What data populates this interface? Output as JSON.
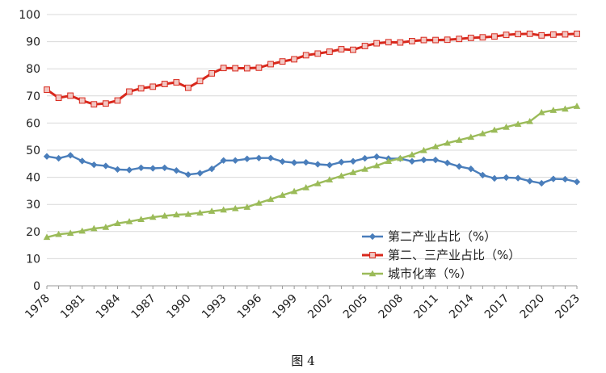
{
  "caption": "图 4",
  "chart_data": {
    "type": "line",
    "title": "",
    "xlabel": "",
    "ylabel": "",
    "ylim": [
      0,
      100
    ],
    "yticks": [
      0,
      10,
      20,
      30,
      40,
      50,
      60,
      70,
      80,
      90,
      100
    ],
    "xlim": [
      1978,
      2023
    ],
    "xticks": [
      1978,
      1981,
      1984,
      1987,
      1990,
      1993,
      1996,
      1999,
      2002,
      2005,
      2008,
      2011,
      2014,
      2017,
      2020,
      2023
    ],
    "grid": "horizontal",
    "legend_position": "bottom-right",
    "x": [
      1978,
      1979,
      1980,
      1981,
      1982,
      1983,
      1984,
      1985,
      1986,
      1987,
      1988,
      1989,
      1990,
      1991,
      1992,
      1993,
      1994,
      1995,
      1996,
      1997,
      1998,
      1999,
      2000,
      2001,
      2002,
      2003,
      2004,
      2005,
      2006,
      2007,
      2008,
      2009,
      2010,
      2011,
      2012,
      2013,
      2014,
      2015,
      2016,
      2017,
      2018,
      2019,
      2020,
      2021,
      2022,
      2023
    ],
    "series": [
      {
        "name": "第二产业占比（%）",
        "color": "#4a7ebb",
        "marker": "diamond",
        "values": [
          47.7,
          47.0,
          48.1,
          46.0,
          44.6,
          44.2,
          42.9,
          42.7,
          43.5,
          43.3,
          43.5,
          42.5,
          41.0,
          41.5,
          43.1,
          46.2,
          46.2,
          46.8,
          47.1,
          47.1,
          45.8,
          45.4,
          45.5,
          44.8,
          44.5,
          45.6,
          45.9,
          47.0,
          47.6,
          46.9,
          46.9,
          45.9,
          46.4,
          46.4,
          45.3,
          44.0,
          43.1,
          40.8,
          39.6,
          39.9,
          39.7,
          38.6,
          37.8,
          39.4,
          39.3,
          38.3
        ]
      },
      {
        "name": "第二、三产业占比（%）",
        "color": "#d8281c",
        "marker": "square",
        "values": [
          72.3,
          69.3,
          70.1,
          68.3,
          66.9,
          67.2,
          68.3,
          71.6,
          72.8,
          73.4,
          74.4,
          75.0,
          73.0,
          75.5,
          78.3,
          80.3,
          80.2,
          80.2,
          80.4,
          81.7,
          82.7,
          83.5,
          85.0,
          85.6,
          86.3,
          87.2,
          87.0,
          88.4,
          89.4,
          89.8,
          89.7,
          90.2,
          90.6,
          90.6,
          90.7,
          91.0,
          91.4,
          91.6,
          91.9,
          92.5,
          92.8,
          92.9,
          92.3,
          92.6,
          92.7,
          92.9
        ]
      },
      {
        "name": "城市化率（%）",
        "color": "#9bbb59",
        "marker": "triangle",
        "values": [
          17.9,
          19.0,
          19.4,
          20.2,
          21.1,
          21.6,
          23.0,
          23.7,
          24.5,
          25.3,
          25.8,
          26.2,
          26.4,
          26.9,
          27.5,
          28.0,
          28.5,
          29.0,
          30.5,
          31.9,
          33.4,
          34.8,
          36.2,
          37.7,
          39.1,
          40.5,
          41.8,
          43.0,
          44.3,
          45.9,
          47.0,
          48.3,
          49.9,
          51.3,
          52.6,
          53.7,
          54.8,
          56.1,
          57.4,
          58.5,
          59.6,
          60.6,
          63.9,
          64.7,
          65.2,
          66.2
        ]
      }
    ]
  }
}
